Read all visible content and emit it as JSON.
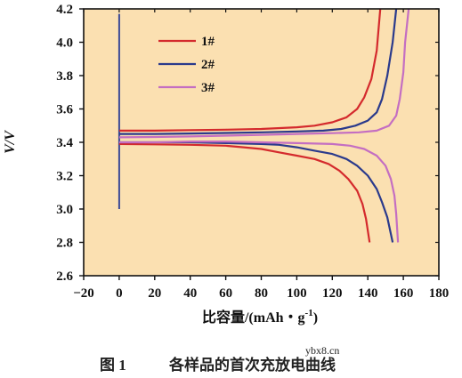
{
  "chart_data": {
    "type": "line",
    "xlabel": "比容量/(mAh・g",
    "xlabel_sup": "-1",
    "xlabel_suffix": ")",
    "ylabel": "V/V",
    "xlim": [
      -20,
      180
    ],
    "ylim": [
      2.6,
      4.2
    ],
    "x_ticks": [
      -20,
      0,
      20,
      40,
      60,
      80,
      100,
      120,
      140,
      160,
      180
    ],
    "y_ticks": [
      2.6,
      2.8,
      3.0,
      3.2,
      3.4,
      3.6,
      3.8,
      4.0,
      4.2
    ],
    "legend_position": "top-left",
    "grid": false,
    "plot_background": "#fbe0b1",
    "initial_segment": {
      "color": "#3b4a97",
      "points": [
        [
          0,
          3.0
        ],
        [
          0,
          3.35
        ],
        [
          0,
          4.17
        ],
        [
          0,
          3.38
        ]
      ]
    },
    "series": [
      {
        "name": "1#",
        "color": "#d42a2d",
        "charge": [
          [
            0,
            3.47
          ],
          [
            20,
            3.47
          ],
          [
            40,
            3.473
          ],
          [
            60,
            3.476
          ],
          [
            80,
            3.48
          ],
          [
            100,
            3.49
          ],
          [
            110,
            3.5
          ],
          [
            120,
            3.52
          ],
          [
            128,
            3.55
          ],
          [
            134,
            3.6
          ],
          [
            138,
            3.67
          ],
          [
            142,
            3.78
          ],
          [
            145,
            3.95
          ],
          [
            147,
            4.2
          ]
        ],
        "discharge": [
          [
            0,
            3.39
          ],
          [
            20,
            3.388
          ],
          [
            40,
            3.385
          ],
          [
            60,
            3.38
          ],
          [
            70,
            3.37
          ],
          [
            80,
            3.36
          ],
          [
            90,
            3.34
          ],
          [
            100,
            3.32
          ],
          [
            110,
            3.3
          ],
          [
            118,
            3.27
          ],
          [
            124,
            3.23
          ],
          [
            129,
            3.18
          ],
          [
            134,
            3.11
          ],
          [
            137,
            3.03
          ],
          [
            139,
            2.94
          ],
          [
            141,
            2.8
          ]
        ]
      },
      {
        "name": "2#",
        "color": "#2a3a8c",
        "charge": [
          [
            0,
            3.45
          ],
          [
            20,
            3.45
          ],
          [
            40,
            3.453
          ],
          [
            60,
            3.456
          ],
          [
            80,
            3.46
          ],
          [
            100,
            3.465
          ],
          [
            115,
            3.47
          ],
          [
            125,
            3.48
          ],
          [
            133,
            3.5
          ],
          [
            140,
            3.53
          ],
          [
            145,
            3.58
          ],
          [
            148,
            3.66
          ],
          [
            151,
            3.8
          ],
          [
            154,
            4.0
          ],
          [
            156,
            4.2
          ]
        ],
        "discharge": [
          [
            0,
            3.4
          ],
          [
            20,
            3.4
          ],
          [
            40,
            3.4
          ],
          [
            60,
            3.395
          ],
          [
            80,
            3.39
          ],
          [
            90,
            3.385
          ],
          [
            100,
            3.37
          ],
          [
            110,
            3.35
          ],
          [
            120,
            3.33
          ],
          [
            128,
            3.3
          ],
          [
            134,
            3.26
          ],
          [
            140,
            3.2
          ],
          [
            145,
            3.12
          ],
          [
            148,
            3.04
          ],
          [
            151,
            2.95
          ],
          [
            154,
            2.8
          ]
        ]
      },
      {
        "name": "3#",
        "color": "#c46ec2",
        "charge": [
          [
            0,
            3.43
          ],
          [
            20,
            3.432
          ],
          [
            40,
            3.435
          ],
          [
            60,
            3.44
          ],
          [
            80,
            3.445
          ],
          [
            100,
            3.45
          ],
          [
            120,
            3.455
          ],
          [
            135,
            3.46
          ],
          [
            145,
            3.47
          ],
          [
            152,
            3.5
          ],
          [
            156,
            3.56
          ],
          [
            158,
            3.66
          ],
          [
            160,
            3.82
          ],
          [
            161,
            4.0
          ],
          [
            163,
            4.2
          ]
        ],
        "discharge": [
          [
            0,
            3.4
          ],
          [
            20,
            3.4
          ],
          [
            40,
            3.405
          ],
          [
            60,
            3.405
          ],
          [
            80,
            3.4
          ],
          [
            100,
            3.395
          ],
          [
            120,
            3.39
          ],
          [
            130,
            3.38
          ],
          [
            138,
            3.36
          ],
          [
            145,
            3.32
          ],
          [
            150,
            3.26
          ],
          [
            153,
            3.18
          ],
          [
            155,
            3.08
          ],
          [
            156,
            2.97
          ],
          [
            157,
            2.8
          ]
        ]
      }
    ]
  },
  "watermark": "ybx8.cn",
  "caption": {
    "figure_label": "图 1",
    "title": "各样品的首次充放电曲线"
  }
}
